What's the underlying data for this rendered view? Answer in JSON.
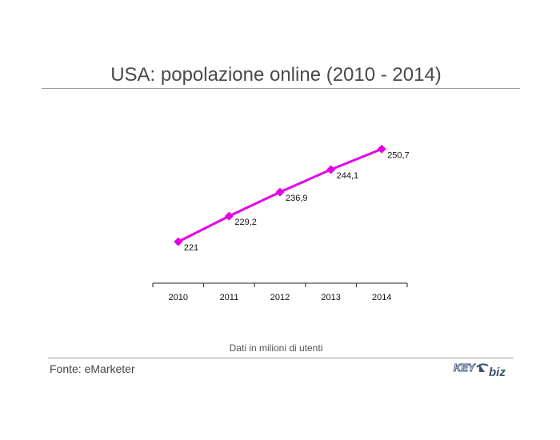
{
  "title": "USA: popolazione online (2010 - 2014)",
  "note": "Dati in milioni di utenti",
  "source": "Fonte: eMarketer",
  "logo": {
    "text_left": "KEY",
    "text_right": "biz",
    "color": "#3a4f6e"
  },
  "chart_data": {
    "type": "line",
    "categories": [
      "2010",
      "2011",
      "2012",
      "2013",
      "2014"
    ],
    "series": [
      {
        "values": [
          221,
          229.2,
          236.9,
          244.1,
          250.7
        ],
        "color": "#e600e6"
      }
    ],
    "data_labels": [
      "221",
      "229,2",
      "236,9",
      "244,1",
      "250,7"
    ],
    "ylim": [
      200,
      260
    ],
    "xlabel": "",
    "ylabel": "",
    "grid": false,
    "legend": false,
    "marker": "diamond"
  }
}
